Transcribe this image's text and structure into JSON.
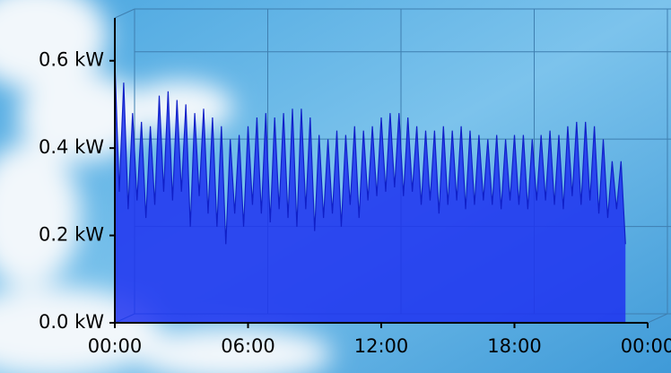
{
  "chart_data": {
    "type": "area",
    "x": [
      0.0,
      0.2,
      0.4,
      0.6,
      0.8,
      1.0,
      1.2,
      1.4,
      1.6,
      1.8,
      2.0,
      2.2,
      2.4,
      2.6,
      2.8,
      3.0,
      3.2,
      3.4,
      3.6,
      3.8,
      4.0,
      4.2,
      4.4,
      4.6,
      4.8,
      5.0,
      5.2,
      5.4,
      5.6,
      5.8,
      6.0,
      6.2,
      6.4,
      6.6,
      6.8,
      7.0,
      7.2,
      7.4,
      7.6,
      7.8,
      8.0,
      8.2,
      8.4,
      8.6,
      8.8,
      9.0,
      9.2,
      9.4,
      9.6,
      9.8,
      10.0,
      10.2,
      10.4,
      10.6,
      10.8,
      11.0,
      11.2,
      11.4,
      11.6,
      11.8,
      12.0,
      12.2,
      12.4,
      12.6,
      12.8,
      13.0,
      13.2,
      13.4,
      13.6,
      13.8,
      14.0,
      14.2,
      14.4,
      14.6,
      14.8,
      15.0,
      15.2,
      15.4,
      15.6,
      15.8,
      16.0,
      16.2,
      16.4,
      16.6,
      16.8,
      17.0,
      17.2,
      17.4,
      17.6,
      17.8,
      18.0,
      18.2,
      18.4,
      18.6,
      18.8,
      19.0,
      19.2,
      19.4,
      19.6,
      19.8,
      20.0,
      20.2,
      20.4,
      20.6,
      20.8,
      21.0,
      21.2,
      21.4,
      21.6,
      21.8,
      22.0,
      22.2,
      22.4,
      22.6,
      22.8,
      23.0
    ],
    "series": [
      {
        "color": "#1f33f0",
        "values": [
          0.6,
          0.3,
          0.55,
          0.26,
          0.48,
          0.28,
          0.46,
          0.24,
          0.45,
          0.27,
          0.52,
          0.3,
          0.53,
          0.28,
          0.51,
          0.3,
          0.5,
          0.22,
          0.48,
          0.29,
          0.49,
          0.25,
          0.47,
          0.22,
          0.45,
          0.18,
          0.42,
          0.25,
          0.43,
          0.22,
          0.45,
          0.27,
          0.47,
          0.25,
          0.48,
          0.23,
          0.47,
          0.26,
          0.48,
          0.24,
          0.49,
          0.22,
          0.49,
          0.26,
          0.47,
          0.21,
          0.43,
          0.24,
          0.42,
          0.25,
          0.44,
          0.22,
          0.43,
          0.27,
          0.45,
          0.24,
          0.44,
          0.28,
          0.45,
          0.29,
          0.47,
          0.3,
          0.48,
          0.31,
          0.48,
          0.29,
          0.47,
          0.3,
          0.45,
          0.27,
          0.44,
          0.28,
          0.44,
          0.25,
          0.45,
          0.27,
          0.44,
          0.28,
          0.45,
          0.26,
          0.44,
          0.27,
          0.43,
          0.28,
          0.42,
          0.27,
          0.43,
          0.26,
          0.42,
          0.28,
          0.43,
          0.27,
          0.43,
          0.26,
          0.42,
          0.28,
          0.43,
          0.28,
          0.44,
          0.27,
          0.43,
          0.26,
          0.45,
          0.29,
          0.46,
          0.27,
          0.46,
          0.28,
          0.45,
          0.25,
          0.42,
          0.24,
          0.37,
          0.26,
          0.37,
          0.18
        ]
      }
    ],
    "xlim": [
      0,
      24
    ],
    "xticks": [
      {
        "value": 0,
        "label": "00:00"
      },
      {
        "value": 6,
        "label": "06:00"
      },
      {
        "value": 12,
        "label": "12:00"
      },
      {
        "value": 18,
        "label": "18:00"
      },
      {
        "value": 24,
        "label": "00:00"
      }
    ],
    "ylim": [
      0,
      0.62
    ],
    "yticks": [
      {
        "value": 0,
        "label": "0.0 kW"
      },
      {
        "value": 0.2,
        "label": "0.2 kW"
      },
      {
        "value": 0.4,
        "label": "0.4 kW"
      },
      {
        "value": 0.6,
        "label": "0.6 kW"
      }
    ],
    "grid": true
  }
}
